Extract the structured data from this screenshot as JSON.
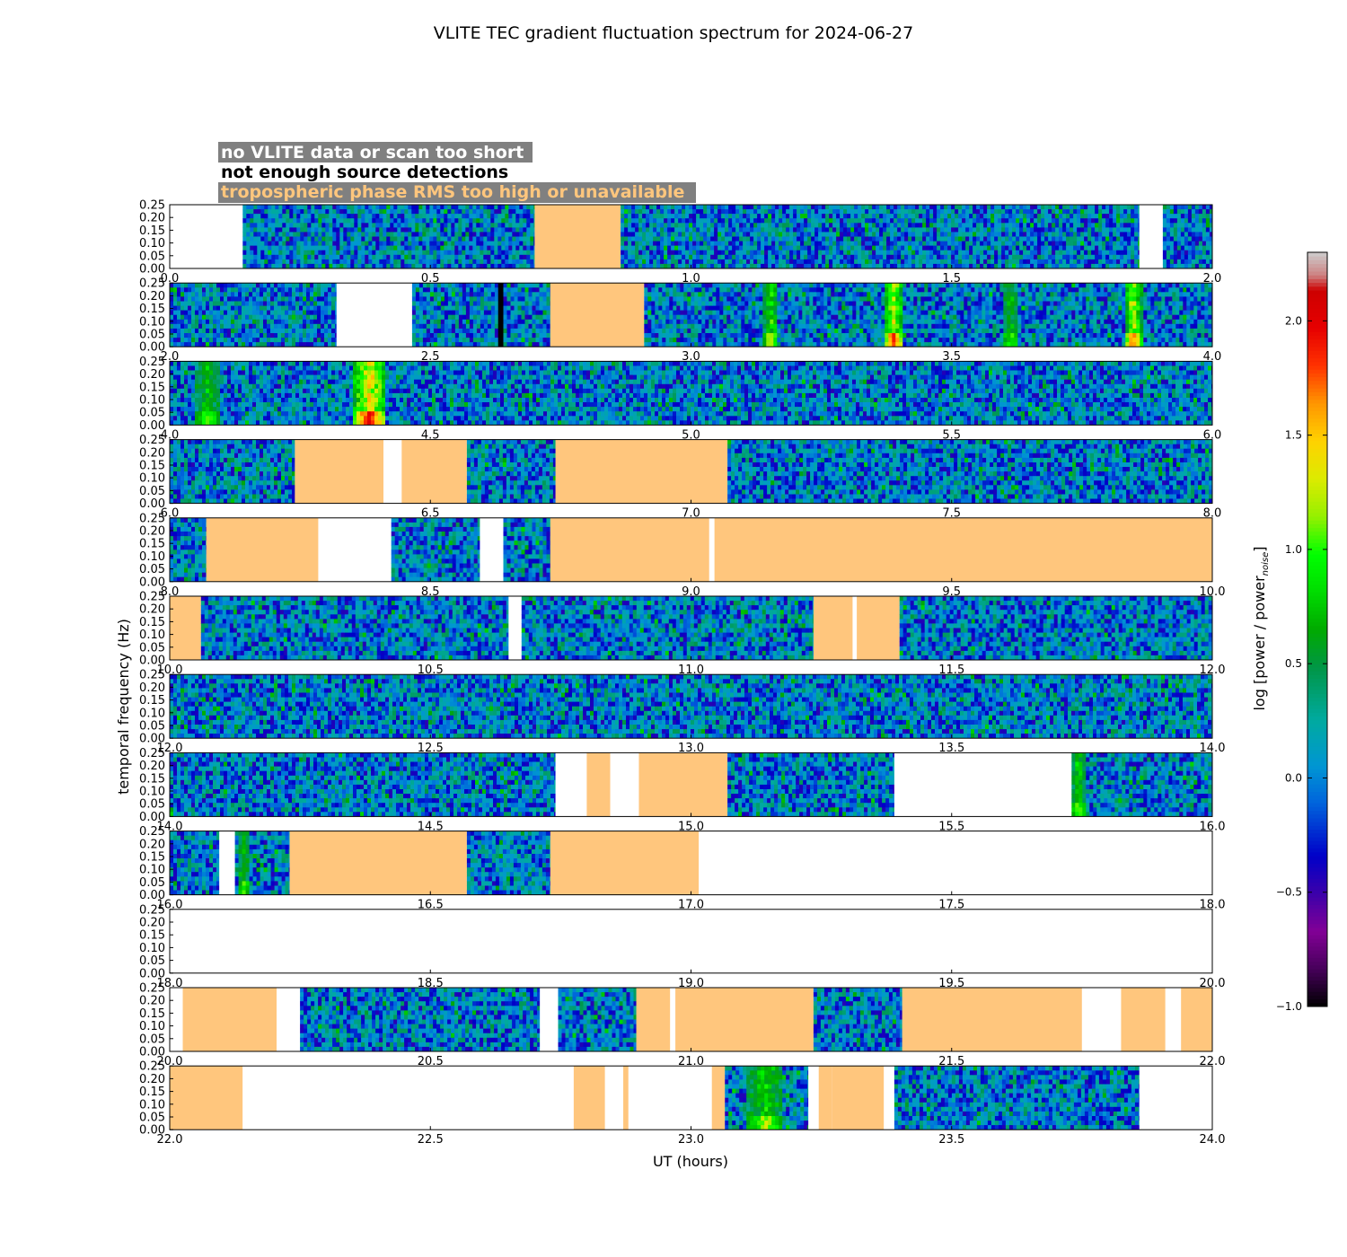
{
  "title": "VLITE TEC gradient fluctuation spectrum for 2024-06-27",
  "legend": {
    "entries": [
      {
        "label": "no VLITE data or scan too short",
        "color": "#ffffff"
      },
      {
        "label": "not enough source detections",
        "color": "#000000"
      },
      {
        "label": "tropospheric phase RMS too high or unavailable",
        "color": "#ffc67d"
      }
    ],
    "box_color": "#808080",
    "placement": "top-left"
  },
  "chart_data": {
    "type": "heatmap",
    "title": "VLITE TEC gradient fluctuation spectrum for 2024-06-27",
    "xlabel": "UT (hours)",
    "ylabel": "temporal frequency (Hz)",
    "yticks": [
      "0.00",
      "0.05",
      "0.10",
      "0.15",
      "0.20",
      "0.25"
    ],
    "ylim": [
      0,
      0.25
    ],
    "colorbar": {
      "label": "log [power / power",
      "label_sub": "noise",
      "label_end": "]",
      "range": [
        -1.0,
        2.3
      ],
      "ticks": [
        "−1.0",
        "−0.5",
        "0.0",
        "0.5",
        "1.0",
        "1.5",
        "2.0"
      ],
      "tick_values": [
        -1.0,
        -0.5,
        0.0,
        0.5,
        1.0,
        1.5,
        2.0
      ],
      "colormap": "nipy_spectral"
    },
    "panels": [
      {
        "range": [
          0,
          2
        ],
        "xticks": [
          "0.0",
          "0.5",
          "1.0",
          "1.5",
          "2.0"
        ],
        "segments": [
          [
            "nodata",
            0,
            0.14
          ],
          [
            "data",
            0.14,
            0.7
          ],
          [
            "trop",
            0.7,
            0.865
          ],
          [
            "data",
            0.865,
            1.86
          ],
          [
            "nodata",
            1.86,
            1.905
          ],
          [
            "data",
            1.905,
            2.0
          ]
        ]
      },
      {
        "range": [
          2,
          4
        ],
        "xticks": [
          "2.0",
          "2.5",
          "3.0",
          "3.5",
          "4.0"
        ],
        "segments": [
          [
            "data",
            2.0,
            2.32
          ],
          [
            "nodata",
            2.32,
            2.465
          ],
          [
            "data",
            2.465,
            2.63
          ],
          [
            "nodet",
            2.63,
            2.64
          ],
          [
            "data",
            2.64,
            2.73
          ],
          [
            "trop",
            2.73,
            2.91
          ],
          [
            "data",
            2.91,
            4.0
          ]
        ]
      },
      {
        "range": [
          4,
          6
        ],
        "xticks": [
          "4.0",
          "4.5",
          "5.0",
          "5.5",
          "6.0"
        ],
        "segments": [
          [
            "data",
            4.0,
            6.0
          ]
        ]
      },
      {
        "range": [
          6,
          8
        ],
        "xticks": [
          "6.0",
          "6.5",
          "7.0",
          "7.5",
          "8.0"
        ],
        "segments": [
          [
            "data",
            6.0,
            6.24
          ],
          [
            "trop",
            6.24,
            6.41
          ],
          [
            "nodata",
            6.41,
            6.445
          ],
          [
            "trop",
            6.445,
            6.57
          ],
          [
            "data",
            6.57,
            6.74
          ],
          [
            "trop",
            6.74,
            7.07
          ],
          [
            "data",
            7.07,
            8.0
          ]
        ]
      },
      {
        "range": [
          8,
          10
        ],
        "xticks": [
          "8.0",
          "8.5",
          "9.0",
          "9.5",
          "10.0"
        ],
        "segments": [
          [
            "data",
            8.0,
            8.07
          ],
          [
            "trop",
            8.07,
            8.285
          ],
          [
            "nodata",
            8.285,
            8.425
          ],
          [
            "data",
            8.425,
            8.595
          ],
          [
            "nodata",
            8.595,
            8.64
          ],
          [
            "data",
            8.64,
            8.73
          ],
          [
            "trop",
            8.73,
            9.035
          ],
          [
            "nodata",
            9.035,
            9.045
          ],
          [
            "trop",
            9.045,
            10.0
          ]
        ]
      },
      {
        "range": [
          10,
          12
        ],
        "xticks": [
          "10.0",
          "10.5",
          "11.0",
          "11.5",
          "12.0"
        ],
        "segments": [
          [
            "trop",
            10.0,
            10.06
          ],
          [
            "data",
            10.06,
            10.65
          ],
          [
            "nodata",
            10.65,
            10.675
          ],
          [
            "data",
            10.675,
            11.235
          ],
          [
            "trop",
            11.235,
            11.31
          ],
          [
            "nodata",
            11.31,
            11.318
          ],
          [
            "trop",
            11.318,
            11.4
          ],
          [
            "data",
            11.4,
            12.0
          ]
        ]
      },
      {
        "range": [
          12,
          14
        ],
        "xticks": [
          "12.0",
          "12.5",
          "13.0",
          "13.5",
          "14.0"
        ],
        "segments": [
          [
            "data",
            12.0,
            14.0
          ]
        ]
      },
      {
        "range": [
          14,
          16
        ],
        "xticks": [
          "14.0",
          "14.5",
          "15.0",
          "15.5",
          "16.0"
        ],
        "segments": [
          [
            "data",
            14.0,
            14.74
          ],
          [
            "nodata",
            14.74,
            14.8
          ],
          [
            "trop",
            14.8,
            14.845
          ],
          [
            "nodata",
            14.845,
            14.9
          ],
          [
            "trop",
            14.9,
            15.07
          ],
          [
            "data",
            15.07,
            15.39
          ],
          [
            "nodata",
            15.39,
            15.73
          ],
          [
            "data",
            15.73,
            16.0
          ]
        ]
      },
      {
        "range": [
          16,
          18
        ],
        "xticks": [
          "16.0",
          "16.5",
          "17.0",
          "17.5",
          "18.0"
        ],
        "segments": [
          [
            "data",
            16.0,
            16.095
          ],
          [
            "nodata",
            16.095,
            16.125
          ],
          [
            "data",
            16.125,
            16.23
          ],
          [
            "trop",
            16.23,
            16.57
          ],
          [
            "data",
            16.57,
            16.73
          ],
          [
            "trop",
            16.73,
            17.015
          ],
          [
            "nodata",
            17.015,
            18.0
          ]
        ]
      },
      {
        "range": [
          18,
          20
        ],
        "xticks": [
          "18.0",
          "18.5",
          "19.0",
          "19.5",
          "20.0"
        ],
        "segments": [
          [
            "nodata",
            18.0,
            20.0
          ]
        ]
      },
      {
        "range": [
          20,
          22
        ],
        "xticks": [
          "20.0",
          "20.5",
          "21.0",
          "21.5",
          "22.0"
        ],
        "segments": [
          [
            "nodata",
            20.0,
            20.025
          ],
          [
            "trop",
            20.025,
            20.205
          ],
          [
            "nodata",
            20.205,
            20.25
          ],
          [
            "data",
            20.25,
            20.71
          ],
          [
            "nodata",
            20.71,
            20.745
          ],
          [
            "data",
            20.745,
            20.895
          ],
          [
            "trop",
            20.895,
            20.96
          ],
          [
            "nodata",
            20.96,
            20.97
          ],
          [
            "trop",
            20.97,
            21.235
          ],
          [
            "data",
            21.235,
            21.405
          ],
          [
            "trop",
            21.405,
            21.75
          ],
          [
            "nodata",
            21.75,
            21.825
          ],
          [
            "trop",
            21.825,
            21.91
          ],
          [
            "nodata",
            21.91,
            21.94
          ],
          [
            "trop",
            21.94,
            22.0
          ]
        ]
      },
      {
        "range": [
          22,
          24
        ],
        "xticks": [
          "22.0",
          "22.5",
          "23.0",
          "23.5",
          "24.0"
        ],
        "segments": [
          [
            "trop",
            22.0,
            22.14
          ],
          [
            "nodata",
            22.14,
            22.775
          ],
          [
            "trop",
            22.775,
            22.835
          ],
          [
            "nodata",
            22.835,
            22.87
          ],
          [
            "trop",
            22.87,
            22.88
          ],
          [
            "nodata",
            22.88,
            23.04
          ],
          [
            "trop",
            23.04,
            23.065
          ],
          [
            "data",
            23.065,
            23.225
          ],
          [
            "nodata",
            23.225,
            23.245
          ],
          [
            "trop",
            23.245,
            23.27
          ],
          [
            "trop",
            23.27,
            23.37
          ],
          [
            "nodata",
            23.37,
            23.39
          ],
          [
            "data",
            23.39,
            23.86
          ],
          [
            "nodata",
            23.86,
            24.0
          ]
        ]
      }
    ],
    "spikes": [
      {
        "t": 3.15,
        "strength": 1.35,
        "width": 0.014
      },
      {
        "t": 3.385,
        "strength": 1.8,
        "width": 0.02
      },
      {
        "t": 3.61,
        "strength": 1.0,
        "width": 0.016
      },
      {
        "t": 3.845,
        "strength": 1.75,
        "width": 0.016
      },
      {
        "t": 4.07,
        "strength": 1.05,
        "width": 0.025
      },
      {
        "t": 4.38,
        "strength": 2.05,
        "width": 0.03
      },
      {
        "t": 4.365,
        "strength": 1.3,
        "width": 0.01
      },
      {
        "t": 23.14,
        "strength": 1.2,
        "width": 0.035
      },
      {
        "t": 15.74,
        "strength": 1.2,
        "width": 0.012
      },
      {
        "t": 16.14,
        "strength": 1.0,
        "width": 0.012
      }
    ]
  },
  "colors": {
    "trop": "#ffc67d",
    "nodata": "#ffffff",
    "nodet": "#000000"
  }
}
